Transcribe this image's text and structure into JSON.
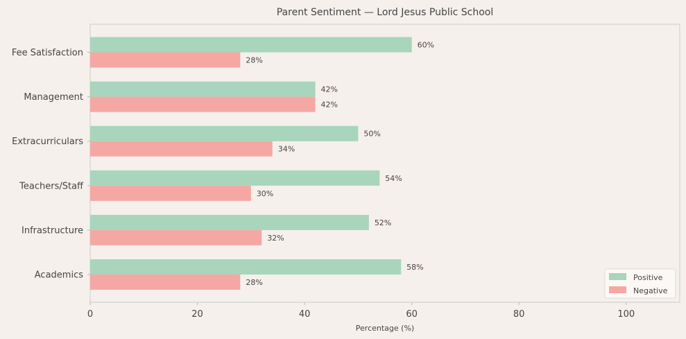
{
  "chart_data": {
    "type": "bar",
    "orientation": "horizontal",
    "title": "Parent Sentiment — Lord Jesus Public School",
    "xlabel": "Percentage (%)",
    "ylabel": "",
    "xlim": [
      0,
      110
    ],
    "xticks": [
      0,
      20,
      40,
      60,
      80,
      100
    ],
    "grid": false,
    "legend_position": "bottom-right",
    "categories": [
      "Academics",
      "Infrastructure",
      "Teachers/Staff",
      "Extracurriculars",
      "Management",
      "Fee Satisfaction"
    ],
    "series": [
      {
        "name": "Positive",
        "color": "#a8d5bb",
        "values": [
          58,
          52,
          54,
          50,
          42,
          60
        ]
      },
      {
        "name": "Negative",
        "color": "#f5a8a3",
        "values": [
          28,
          32,
          30,
          34,
          42,
          28
        ]
      }
    ],
    "value_label_suffix": "%"
  }
}
